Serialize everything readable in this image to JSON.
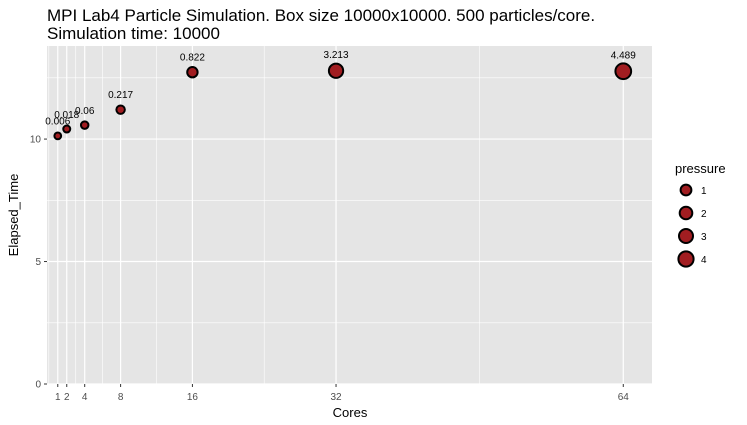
{
  "chart_data": {
    "type": "scatter",
    "title": "MPI Lab4 Particle Simulation. Box size 10000x10000. 500 particles/core.",
    "subtitle": "Simulation time: 10000",
    "xlabel": "Cores",
    "ylabel": "Elapsed_Time",
    "xlim": [
      -0.2,
      67.2
    ],
    "ylim": [
      0,
      13.8
    ],
    "x_ticks": [
      1,
      2,
      4,
      8,
      16,
      32,
      64
    ],
    "x_tick_labels": [
      "1",
      "2",
      "4",
      "8",
      "16",
      "32",
      "64"
    ],
    "x_minor_gridlines": [
      0,
      3,
      6,
      12,
      24,
      48
    ],
    "y_ticks": [
      0,
      5,
      10
    ],
    "y_tick_labels": [
      "0",
      "5",
      "10"
    ],
    "y_minor_gridlines": [
      2.5,
      7.5,
      12.5
    ],
    "grid": true,
    "points": [
      {
        "x": 1,
        "y": 10.13,
        "pressure": 0.006,
        "label": "0.006"
      },
      {
        "x": 2,
        "y": 10.41,
        "pressure": 0.018,
        "label": "0.018"
      },
      {
        "x": 4,
        "y": 10.57,
        "pressure": 0.06,
        "label": "0.06"
      },
      {
        "x": 8,
        "y": 11.2,
        "pressure": 0.217,
        "label": "0.217"
      },
      {
        "x": 16,
        "y": 12.73,
        "pressure": 0.822,
        "label": "0.822"
      },
      {
        "x": 32,
        "y": 12.79,
        "pressure": 3.213,
        "label": "3.213"
      },
      {
        "x": 64,
        "y": 12.77,
        "pressure": 4.489,
        "label": "4.489"
      }
    ],
    "point_fill": "#a11d21",
    "point_stroke": "#000000",
    "panel_background": "#e5e5e5",
    "grid_color": "#ffffff",
    "legend": {
      "title": "pressure",
      "position": "right",
      "entries": [
        {
          "label": "1",
          "value": 1
        },
        {
          "label": "2",
          "value": 2
        },
        {
          "label": "3",
          "value": 3
        },
        {
          "label": "4",
          "value": 4
        }
      ]
    }
  }
}
